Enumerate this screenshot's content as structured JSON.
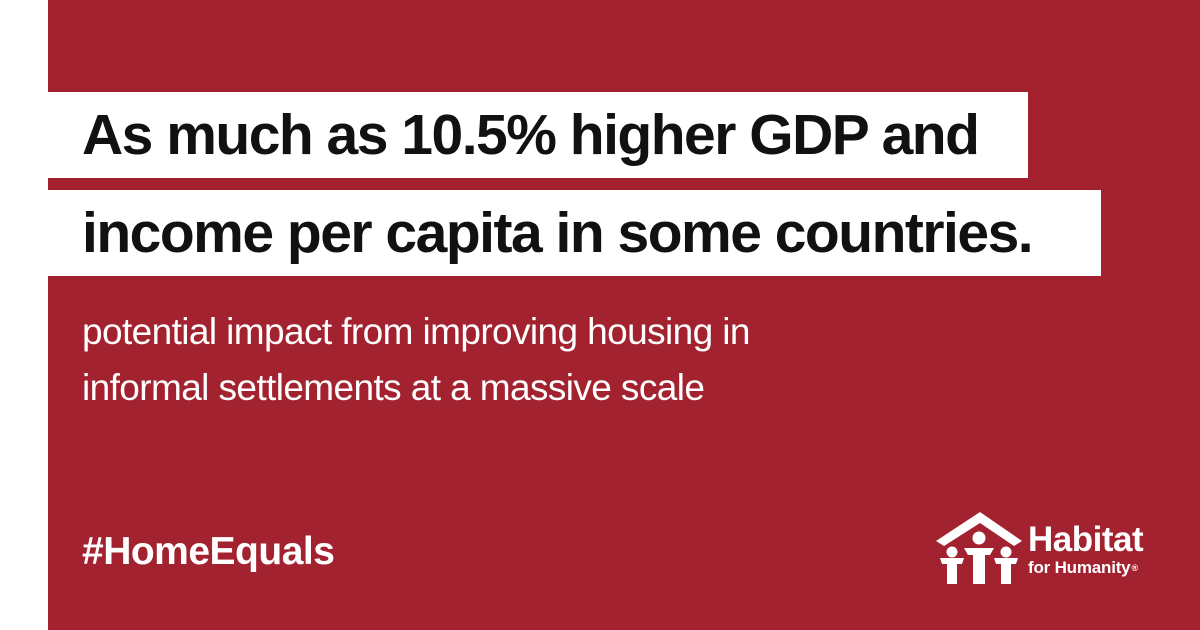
{
  "headline": {
    "line1": "As much as 10.5% higher GDP and",
    "line2": "income per capita in some countries."
  },
  "subtext": {
    "line1": "potential impact from improving housing in",
    "line2": "informal settlements at a massive scale"
  },
  "hashtag": "#HomeEquals",
  "logo": {
    "name": "Habitat",
    "sub": "for Humanity",
    "reg": "®",
    "icon": "habitat-house-people-icon"
  },
  "colors": {
    "background": "#a3222f",
    "bar": "#ffffff",
    "headline_text": "#111111",
    "text": "#ffffff"
  }
}
